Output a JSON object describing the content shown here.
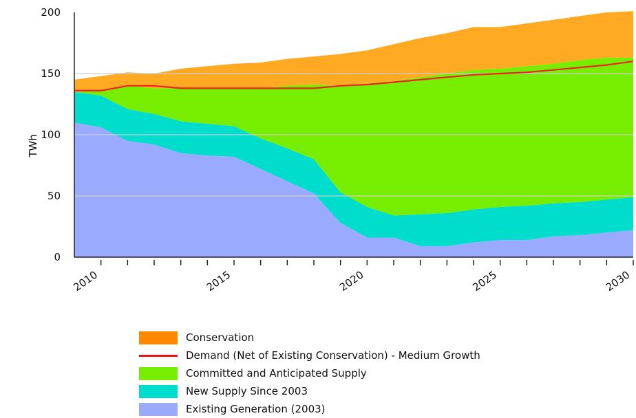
{
  "chart_data": {
    "type": "area",
    "ylabel": "TWh",
    "ylim": [
      0,
      200
    ],
    "xlim": [
      2009,
      2030
    ],
    "yticks": [
      "0",
      "50",
      "100",
      "150",
      "200"
    ],
    "xticks": [
      2010,
      2015,
      2020,
      2025,
      2030
    ],
    "xtick_labels": [
      "2010",
      "2015",
      "2020",
      "2025",
      "2030"
    ],
    "grid": true,
    "legend_position": "bottom",
    "x": [
      2009,
      2010,
      2011,
      2012,
      2013,
      2014,
      2015,
      2016,
      2017,
      2018,
      2019,
      2020,
      2021,
      2022,
      2023,
      2024,
      2025,
      2026,
      2027,
      2028,
      2029,
      2030
    ],
    "series": [
      {
        "name": "Existing Generation (2003)",
        "color": "#99aaff",
        "values": [
          110,
          106,
          95,
          92,
          85,
          83,
          82,
          72,
          62,
          52,
          28,
          16,
          16,
          9,
          9,
          12,
          14,
          14,
          17,
          18,
          20,
          22
        ]
      },
      {
        "name": "New Supply Since 2003",
        "color": "#00ddcc",
        "values": [
          25,
          26,
          26,
          25,
          26,
          26,
          25,
          25,
          27,
          28,
          25,
          25,
          18,
          26,
          27,
          27,
          27,
          28,
          27,
          27,
          27,
          27
        ]
      },
      {
        "name": "Committed and Anticipated Supply",
        "color": "#77ee00",
        "values": [
          0,
          4,
          19,
          21,
          27,
          29,
          31,
          41,
          51,
          61,
          87,
          101,
          110,
          112,
          114,
          114,
          113,
          114,
          114,
          116,
          116,
          114
        ]
      },
      {
        "name": "Conservation",
        "color": "#ffaa22",
        "values": [
          10,
          12,
          11,
          12,
          16,
          18,
          20,
          21,
          22,
          23,
          26,
          27,
          30,
          32,
          33,
          35,
          34,
          35,
          36,
          36,
          37,
          38
        ]
      }
    ],
    "demand_line": {
      "name": "Demand (Net of Existing Conservation) - Medium Growth",
      "color": "#ee2222",
      "values": [
        136,
        136,
        140,
        140,
        138,
        138,
        138,
        138,
        138,
        138,
        140,
        141,
        143,
        145,
        147,
        149,
        150,
        151,
        153,
        155,
        157,
        160
      ]
    }
  },
  "legend": [
    {
      "label": "Conservation",
      "color": "#ff8800",
      "kind": "box"
    },
    {
      "label": "Demand (Net of Existing Conservation) - Medium Growth",
      "color": "#ee1111",
      "kind": "line"
    },
    {
      "label": "Committed and Anticipated Supply",
      "color": "#77ee00",
      "kind": "box"
    },
    {
      "label": "New Supply Since 2003",
      "color": "#00ddcc",
      "kind": "box"
    },
    {
      "label": "Existing Generation (2003)",
      "color": "#99aaff",
      "kind": "box"
    }
  ]
}
